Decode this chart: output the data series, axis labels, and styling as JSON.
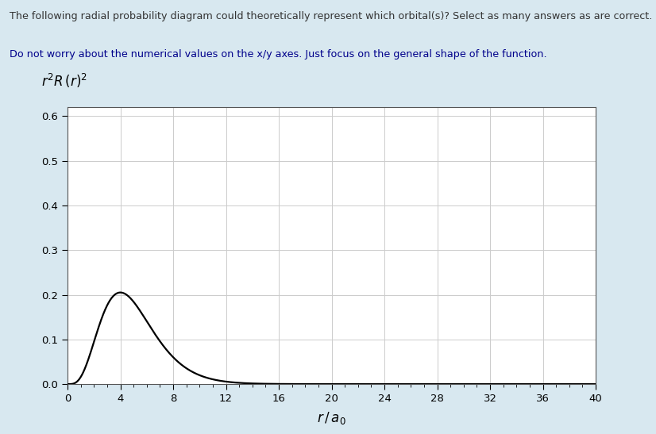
{
  "text1": "The following radial probability diagram could theoretically represent which orbital(s)? Select as many answers as are correct.",
  "text2": "Do not worry about the numerical values on the x/y axes. Just focus on the general shape of the function.",
  "xlim": [
    0,
    40
  ],
  "ylim": [
    0.0,
    0.62
  ],
  "xticks": [
    0,
    4,
    8,
    12,
    16,
    20,
    24,
    28,
    32,
    36,
    40
  ],
  "yticks": [
    0.0,
    0.1,
    0.2,
    0.3,
    0.4,
    0.5,
    0.6
  ],
  "background_color": "#d8e8f0",
  "plot_bg_color": "#ffffff",
  "line_color": "#000000",
  "grid_color": "#cccccc",
  "text1_color": "#333333",
  "text2_color": "#00008B",
  "peak_scale": 1.05
}
